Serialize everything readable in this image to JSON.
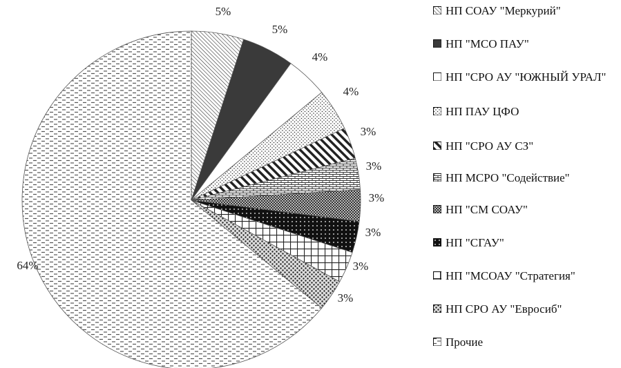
{
  "chart_data": {
    "type": "pie",
    "legend_position": "right",
    "slices": [
      {
        "name": "НП СОАУ \"Меркурий\"",
        "value": 5,
        "label": "5%",
        "pattern": "diagonal-fine"
      },
      {
        "name": "НП \"МСО ПАУ\"",
        "value": 5,
        "label": "5%",
        "pattern": "solid-dark"
      },
      {
        "name": "НП \"СРО АУ \"ЮЖНЫЙ УРАЛ\"",
        "value": 4,
        "label": "4%",
        "pattern": "white"
      },
      {
        "name": "НП ПАУ ЦФО",
        "value": 4,
        "label": "4%",
        "pattern": "dots-fine"
      },
      {
        "name": "НП \"СРО АУ СЗ\"",
        "value": 3,
        "label": "3%",
        "pattern": "diagonal-wide"
      },
      {
        "name": "НП МСРО \"Содействие\"",
        "value": 3,
        "label": "3%",
        "pattern": "brick"
      },
      {
        "name": "НП \"СМ СОАУ\"",
        "value": 3,
        "label": "3%",
        "pattern": "checker"
      },
      {
        "name": "НП \"СГАУ\"",
        "value": 3,
        "label": "3%",
        "pattern": "dark-dots"
      },
      {
        "name": "НП \"МСОАУ \"Стратегия\"",
        "value": 3,
        "label": "3%",
        "pattern": "grid"
      },
      {
        "name": "НП СРО АУ \"Евросиб\"",
        "value": 3,
        "label": "3%",
        "pattern": "dots-coarse"
      },
      {
        "name": "Прочие",
        "value": 64,
        "label": "64%",
        "pattern": "dashes"
      }
    ]
  }
}
